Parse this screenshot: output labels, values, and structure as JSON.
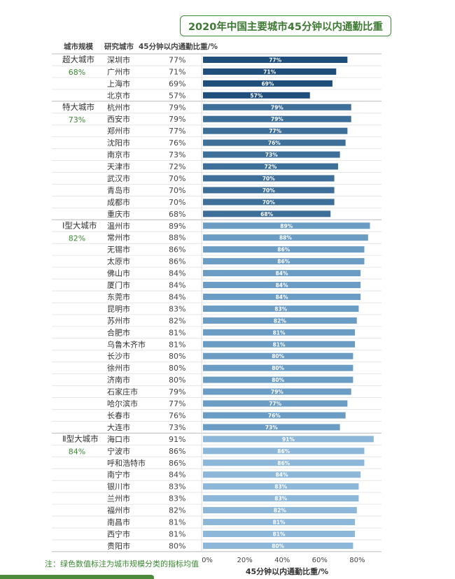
{
  "title": "2020年中国主要城市45分钟以内通勤比重",
  "headers": {
    "scale": "城市规模",
    "city": "研究城市",
    "value": "45分钟以内通勤比重/%"
  },
  "note": "注：绿色数值标注为城市规模分类的指标均值",
  "colors": {
    "title": "#3e7a34",
    "avg": "#3a8a33",
    "bars": [
      "#1f4e7a",
      "#3d6f99",
      "#6b9cc4",
      "#8db7d8"
    ]
  },
  "chart_data": {
    "type": "bar",
    "orientation": "horizontal",
    "xlabel": "45分钟以内通勤比重/%",
    "xlim": [
      0,
      100
    ],
    "xticks": [
      "0%",
      "20%",
      "40%",
      "60%",
      "80%"
    ],
    "groups": [
      {
        "name": "超大城市",
        "avg": "68%",
        "cities": [
          {
            "name": "深圳市",
            "value": 77
          },
          {
            "name": "广州市",
            "value": 71
          },
          {
            "name": "上海市",
            "value": 69
          },
          {
            "name": "北京市",
            "value": 57
          }
        ]
      },
      {
        "name": "特大城市",
        "avg": "73%",
        "cities": [
          {
            "name": "杭州市",
            "value": 79
          },
          {
            "name": "西安市",
            "value": 79
          },
          {
            "name": "郑州市",
            "value": 77
          },
          {
            "name": "沈阳市",
            "value": 76
          },
          {
            "name": "南京市",
            "value": 73
          },
          {
            "name": "天津市",
            "value": 72
          },
          {
            "name": "武汉市",
            "value": 70
          },
          {
            "name": "青岛市",
            "value": 70
          },
          {
            "name": "成都市",
            "value": 70
          },
          {
            "name": "重庆市",
            "value": 68
          }
        ]
      },
      {
        "name": "Ⅰ型大城市",
        "avg": "82%",
        "cities": [
          {
            "name": "温州市",
            "value": 89
          },
          {
            "name": "常州市",
            "value": 88
          },
          {
            "name": "无锡市",
            "value": 86
          },
          {
            "name": "太原市",
            "value": 86
          },
          {
            "name": "佛山市",
            "value": 84
          },
          {
            "name": "厦门市",
            "value": 84
          },
          {
            "name": "东莞市",
            "value": 84
          },
          {
            "name": "昆明市",
            "value": 83
          },
          {
            "name": "苏州市",
            "value": 82
          },
          {
            "name": "合肥市",
            "value": 81
          },
          {
            "name": "乌鲁木齐市",
            "value": 81
          },
          {
            "name": "长沙市",
            "value": 80
          },
          {
            "name": "徐州市",
            "value": 80
          },
          {
            "name": "济南市",
            "value": 80
          },
          {
            "name": "石家庄市",
            "value": 79
          },
          {
            "name": "哈尔滨市",
            "value": 77
          },
          {
            "name": "长春市",
            "value": 76
          },
          {
            "name": "大连市",
            "value": 73
          }
        ]
      },
      {
        "name": "Ⅱ型大城市",
        "avg": "84%",
        "cities": [
          {
            "name": "海口市",
            "value": 91
          },
          {
            "name": "宁波市",
            "value": 86
          },
          {
            "name": "呼和浩特市",
            "value": 86
          },
          {
            "name": "南宁市",
            "value": 84
          },
          {
            "name": "银川市",
            "value": 83
          },
          {
            "name": "兰州市",
            "value": 83
          },
          {
            "name": "福州市",
            "value": 82
          },
          {
            "name": "南昌市",
            "value": 81
          },
          {
            "name": "西宁市",
            "value": 81
          },
          {
            "name": "贵阳市",
            "value": 80
          }
        ]
      }
    ]
  }
}
